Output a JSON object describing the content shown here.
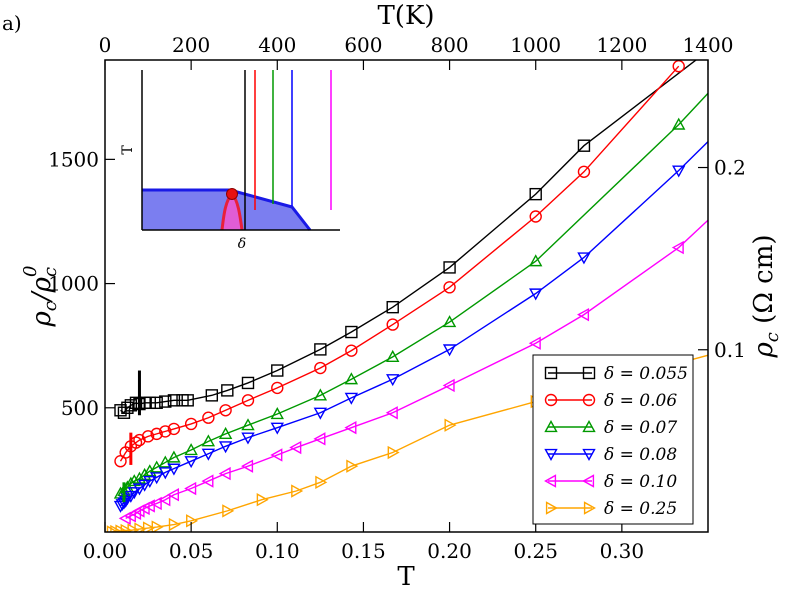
{
  "panel_label": "a)",
  "legend_prefix": "δ = ",
  "colors": {
    "axes": "#000000",
    "inset_fill": "#7b7ef0",
    "inset_edge": "#1a1ae6",
    "inset_dome": "#e8203a",
    "inset_dot": "#e81010"
  },
  "chart_data": {
    "type": "line",
    "xlabel": "T",
    "ylabel": "ρc/ρc0",
    "ylabel_parts": {
      "rho": "ρ",
      "sub": "c",
      "sup": "0"
    },
    "top_xlabel": "T(K)",
    "right_ylabel": "ρc (Ω cm)",
    "right_ylabel_parts": {
      "rho": "ρ",
      "sub": "c",
      "rest": " (Ω cm)"
    },
    "xlim": [
      0.0,
      0.35
    ],
    "ylim": [
      0,
      1900
    ],
    "xticks": [
      0.0,
      0.05,
      0.1,
      0.15,
      0.2,
      0.25,
      0.3
    ],
    "xtick_labels": [
      "0.00",
      "0.05",
      "0.10",
      "0.15",
      "0.20",
      "0.25",
      "0.30"
    ],
    "yticks": [
      500,
      1000,
      1500
    ],
    "ytick_labels": [
      "500",
      "1000",
      "1500"
    ],
    "top_xlim": [
      0,
      1400
    ],
    "top_xticks": [
      0,
      200,
      400,
      600,
      800,
      1000,
      1200,
      1400
    ],
    "top_xtick_labels": [
      "0",
      "200",
      "400",
      "600",
      "800",
      "1000",
      "1200",
      "1400"
    ],
    "right_ylim": [
      0,
      0.259
    ],
    "right_yticks": [
      0.1,
      0.2
    ],
    "right_ytick_labels": [
      "0.1",
      "0.2"
    ],
    "legend_position": "bottom-right",
    "series": [
      {
        "name": "0.055",
        "color": "#000000",
        "marker": "square",
        "x": [
          0.009,
          0.011,
          0.013,
          0.015,
          0.018,
          0.02,
          0.023,
          0.026,
          0.03,
          0.035,
          0.04,
          0.045,
          0.048,
          0.062,
          0.071,
          0.083,
          0.1,
          0.125,
          0.143,
          0.167,
          0.2,
          0.25,
          0.278,
          0.36
        ],
        "y": [
          490,
          480,
          500,
          510,
          520,
          515,
          520,
          520,
          520,
          525,
          530,
          530,
          530,
          550,
          570,
          600,
          650,
          735,
          805,
          905,
          1065,
          1360,
          1555,
          1990
        ]
      },
      {
        "name": "0.06",
        "color": "#ff0000",
        "marker": "circle",
        "x": [
          0.009,
          0.012,
          0.015,
          0.018,
          0.02,
          0.025,
          0.03,
          0.035,
          0.04,
          0.05,
          0.06,
          0.07,
          0.083,
          0.1,
          0.125,
          0.143,
          0.167,
          0.2,
          0.25,
          0.278,
          0.333
        ],
        "y": [
          285,
          320,
          345,
          360,
          370,
          385,
          395,
          405,
          415,
          435,
          460,
          490,
          530,
          580,
          660,
          730,
          835,
          985,
          1270,
          1450,
          1875
        ]
      },
      {
        "name": "0.07",
        "color": "#009900",
        "marker": "triangle-up",
        "x": [
          0.009,
          0.011,
          0.013,
          0.015,
          0.017,
          0.02,
          0.023,
          0.026,
          0.03,
          0.035,
          0.04,
          0.05,
          0.06,
          0.07,
          0.083,
          0.1,
          0.125,
          0.143,
          0.167,
          0.2,
          0.25,
          0.333,
          0.36
        ],
        "y": [
          155,
          165,
          180,
          195,
          205,
          215,
          230,
          245,
          260,
          280,
          300,
          330,
          365,
          395,
          430,
          475,
          550,
          615,
          705,
          845,
          1090,
          1640,
          1840
        ]
      },
      {
        "name": "0.08",
        "color": "#0000ff",
        "marker": "triangle-down",
        "x": [
          0.009,
          0.01,
          0.011,
          0.012,
          0.013,
          0.015,
          0.017,
          0.02,
          0.023,
          0.026,
          0.03,
          0.035,
          0.04,
          0.05,
          0.06,
          0.07,
          0.083,
          0.1,
          0.125,
          0.143,
          0.167,
          0.2,
          0.25,
          0.278,
          0.333,
          0.36
        ],
        "y": [
          105,
          112,
          118,
          125,
          135,
          145,
          160,
          175,
          190,
          205,
          220,
          240,
          255,
          285,
          315,
          345,
          380,
          420,
          480,
          540,
          615,
          735,
          960,
          1105,
          1455,
          1640
        ]
      },
      {
        "name": "0.10",
        "color": "#ff00ff",
        "marker": "triangle-left",
        "x": [
          0.012,
          0.015,
          0.018,
          0.02,
          0.023,
          0.026,
          0.03,
          0.035,
          0.04,
          0.05,
          0.06,
          0.07,
          0.083,
          0.1,
          0.111,
          0.125,
          0.143,
          0.167,
          0.2,
          0.25,
          0.278,
          0.333,
          0.36
        ],
        "y": [
          55,
          65,
          75,
          85,
          95,
          105,
          115,
          130,
          150,
          175,
          205,
          235,
          265,
          310,
          340,
          375,
          420,
          480,
          590,
          760,
          875,
          1145,
          1320
        ]
      },
      {
        "name": "0.25",
        "color": "#ffa500",
        "marker": "triangle-right",
        "x": [
          0.004,
          0.006,
          0.009,
          0.012,
          0.016,
          0.02,
          0.025,
          0.03,
          0.04,
          0.05,
          0.071,
          0.091,
          0.111,
          0.125,
          0.143,
          0.167,
          0.2,
          0.25,
          0.36
        ],
        "y": [
          0,
          2,
          4,
          6,
          8,
          12,
          16,
          20,
          30,
          45,
          85,
          130,
          165,
          200,
          265,
          320,
          430,
          525,
          730
        ]
      }
    ],
    "markers_vertical": [
      {
        "color": "#000000",
        "x": 0.02,
        "y": [
          470,
          650
        ]
      },
      {
        "color": "#ff0000",
        "x": 0.015,
        "y": [
          270,
          400
        ]
      },
      {
        "color": "#009900",
        "x": 0.011,
        "y": [
          120,
          200
        ]
      }
    ],
    "inset": {
      "xlabel": "δ",
      "ylabel": "T",
      "line_colors": [
        "#000000",
        "#ff0000",
        "#009900",
        "#0000ff",
        "#ff00ff"
      ]
    }
  }
}
